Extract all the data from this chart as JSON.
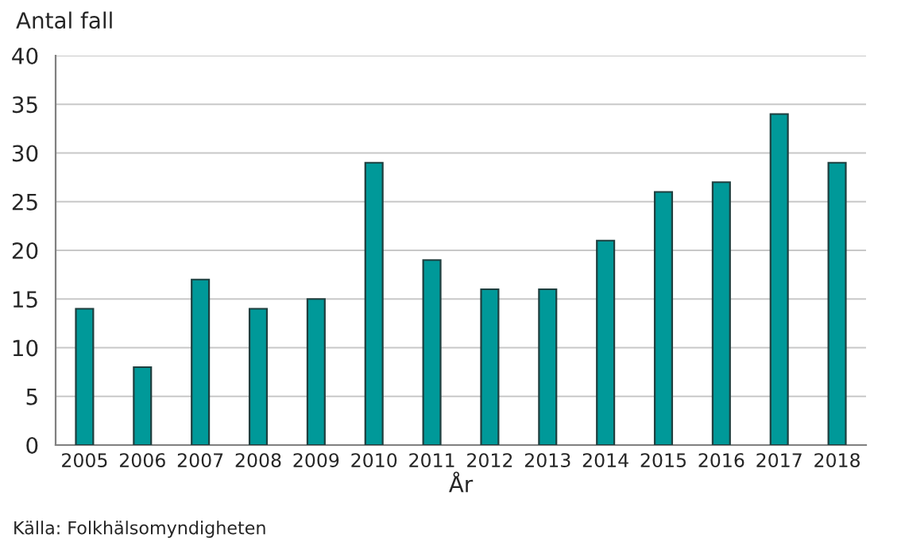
{
  "chart_data": {
    "type": "bar",
    "ylabel": "Antal fall",
    "xlabel": "År",
    "categories": [
      "2005",
      "2006",
      "2007",
      "2008",
      "2009",
      "2010",
      "2011",
      "2012",
      "2013",
      "2014",
      "2015",
      "2016",
      "2017",
      "2018"
    ],
    "values": [
      14,
      8,
      17,
      14,
      15,
      29,
      19,
      16,
      16,
      21,
      26,
      27,
      34,
      29
    ],
    "color": "#009999",
    "ylim": [
      0,
      40
    ],
    "yticks": [
      0,
      5,
      10,
      15,
      20,
      25,
      30,
      35,
      40
    ],
    "grid": "y",
    "annotations": [
      "Källa: Folkhälsomyndigheten"
    ]
  }
}
